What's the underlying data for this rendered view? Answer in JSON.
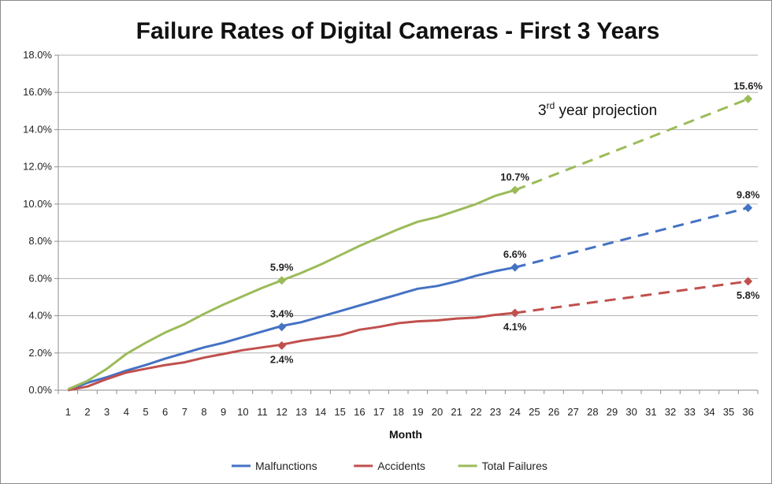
{
  "chart_data": {
    "type": "line",
    "title": "Failure Rates of Digital Cameras - First 3 Years",
    "xlabel": "Month",
    "ylabel": "",
    "ylim": [
      0,
      18
    ],
    "y_ticks": [
      "0.0%",
      "2.0%",
      "4.0%",
      "6.0%",
      "8.0%",
      "10.0%",
      "12.0%",
      "14.0%",
      "16.0%",
      "18.0%"
    ],
    "x_ticks": [
      "1",
      "2",
      "3",
      "4",
      "5",
      "6",
      "7",
      "8",
      "9",
      "10",
      "11",
      "12",
      "13",
      "14",
      "15",
      "16",
      "17",
      "18",
      "19",
      "20",
      "21",
      "22",
      "23",
      "24",
      "25",
      "26",
      "27",
      "28",
      "29",
      "30",
      "31",
      "32",
      "33",
      "34",
      "35",
      "36"
    ],
    "grid": "horizontal",
    "legend": "bottom",
    "annotation": {
      "base": "3",
      "sup": "rd",
      "rest": " year projection"
    },
    "series": [
      {
        "name": "Malfunctions",
        "color": "#4472c4",
        "actual": [
          [
            1,
            0.0
          ],
          [
            2,
            0.4
          ],
          [
            3,
            0.7
          ],
          [
            4,
            1.05
          ],
          [
            5,
            1.35
          ],
          [
            6,
            1.7
          ],
          [
            7,
            2.0
          ],
          [
            8,
            2.3
          ],
          [
            9,
            2.55
          ],
          [
            10,
            2.85
          ],
          [
            11,
            3.15
          ],
          [
            12,
            3.45
          ],
          [
            13,
            3.65
          ],
          [
            14,
            3.95
          ],
          [
            15,
            4.25
          ],
          [
            16,
            4.55
          ],
          [
            17,
            4.85
          ],
          [
            18,
            5.15
          ],
          [
            19,
            5.45
          ],
          [
            20,
            5.6
          ],
          [
            21,
            5.85
          ],
          [
            22,
            6.15
          ],
          [
            23,
            6.4
          ],
          [
            24,
            6.6
          ]
        ],
        "projection": [
          [
            24,
            6.6
          ],
          [
            36,
            9.8
          ]
        ],
        "markers": [
          {
            "x": 12,
            "y": 3.4,
            "label": "3.4%",
            "pos": "above"
          },
          {
            "x": 24,
            "y": 6.6,
            "label": "6.6%",
            "pos": "above"
          },
          {
            "x": 36,
            "y": 9.8,
            "label": "9.8%",
            "pos": "above"
          }
        ]
      },
      {
        "name": "Accidents",
        "color": "#c0504d",
        "actual": [
          [
            1,
            0.0
          ],
          [
            2,
            0.2
          ],
          [
            3,
            0.6
          ],
          [
            4,
            0.95
          ],
          [
            5,
            1.15
          ],
          [
            6,
            1.35
          ],
          [
            7,
            1.5
          ],
          [
            8,
            1.75
          ],
          [
            9,
            1.95
          ],
          [
            10,
            2.15
          ],
          [
            11,
            2.3
          ],
          [
            12,
            2.45
          ],
          [
            13,
            2.65
          ],
          [
            14,
            2.8
          ],
          [
            15,
            2.95
          ],
          [
            16,
            3.25
          ],
          [
            17,
            3.4
          ],
          [
            18,
            3.6
          ],
          [
            19,
            3.7
          ],
          [
            20,
            3.75
          ],
          [
            21,
            3.85
          ],
          [
            22,
            3.9
          ],
          [
            23,
            4.05
          ],
          [
            24,
            4.15
          ]
        ],
        "projection": [
          [
            24,
            4.15
          ],
          [
            36,
            5.85
          ]
        ],
        "markers": [
          {
            "x": 12,
            "y": 2.4,
            "label": "2.4%",
            "pos": "below"
          },
          {
            "x": 24,
            "y": 4.15,
            "label": "4.1%",
            "pos": "below"
          },
          {
            "x": 36,
            "y": 5.85,
            "label": "5.8%",
            "pos": "below"
          }
        ]
      },
      {
        "name": "Total Failures",
        "color": "#9bbb59",
        "actual": [
          [
            1,
            0.05
          ],
          [
            2,
            0.5
          ],
          [
            3,
            1.15
          ],
          [
            4,
            1.95
          ],
          [
            5,
            2.55
          ],
          [
            6,
            3.1
          ],
          [
            7,
            3.55
          ],
          [
            8,
            4.1
          ],
          [
            9,
            4.6
          ],
          [
            10,
            5.05
          ],
          [
            11,
            5.5
          ],
          [
            12,
            5.9
          ],
          [
            13,
            6.3
          ],
          [
            14,
            6.75
          ],
          [
            15,
            7.25
          ],
          [
            16,
            7.75
          ],
          [
            17,
            8.2
          ],
          [
            18,
            8.65
          ],
          [
            19,
            9.05
          ],
          [
            20,
            9.3
          ],
          [
            21,
            9.65
          ],
          [
            22,
            10.0
          ],
          [
            23,
            10.45
          ],
          [
            24,
            10.75
          ]
        ],
        "projection": [
          [
            24,
            10.75
          ],
          [
            36,
            15.65
          ]
        ],
        "markers": [
          {
            "x": 12,
            "y": 5.9,
            "label": "5.9%",
            "pos": "above"
          },
          {
            "x": 24,
            "y": 10.75,
            "label": "10.7%",
            "pos": "above"
          },
          {
            "x": 36,
            "y": 15.65,
            "label": "15.6%",
            "pos": "above"
          }
        ]
      }
    ]
  }
}
